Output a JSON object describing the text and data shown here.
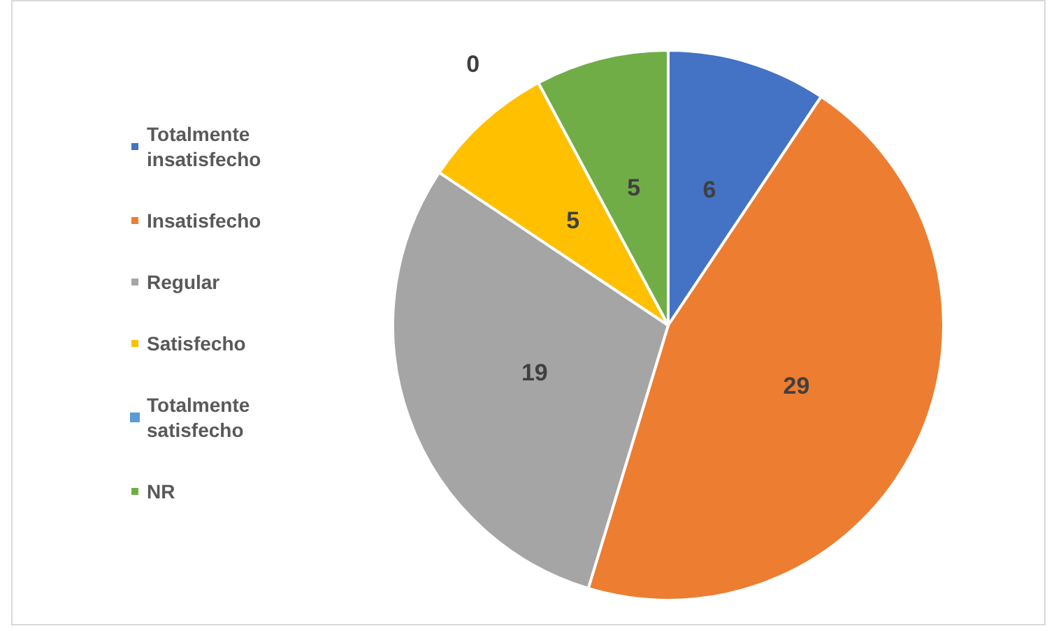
{
  "chart_data": {
    "type": "pie",
    "categories": [
      "Totalmente insatisfecho",
      "Insatisfecho",
      "Regular",
      "Satisfecho",
      "Totalmente satisfecho",
      "NR"
    ],
    "values": [
      6,
      29,
      19,
      5,
      0,
      5
    ],
    "colors": [
      "#4472c4",
      "#ed7d31",
      "#a5a5a5",
      "#ffc000",
      "#5b9bd5",
      "#70ad47"
    ],
    "value_labels": [
      "6",
      "29",
      "19",
      "5",
      "0",
      "5"
    ],
    "legend": "left"
  }
}
